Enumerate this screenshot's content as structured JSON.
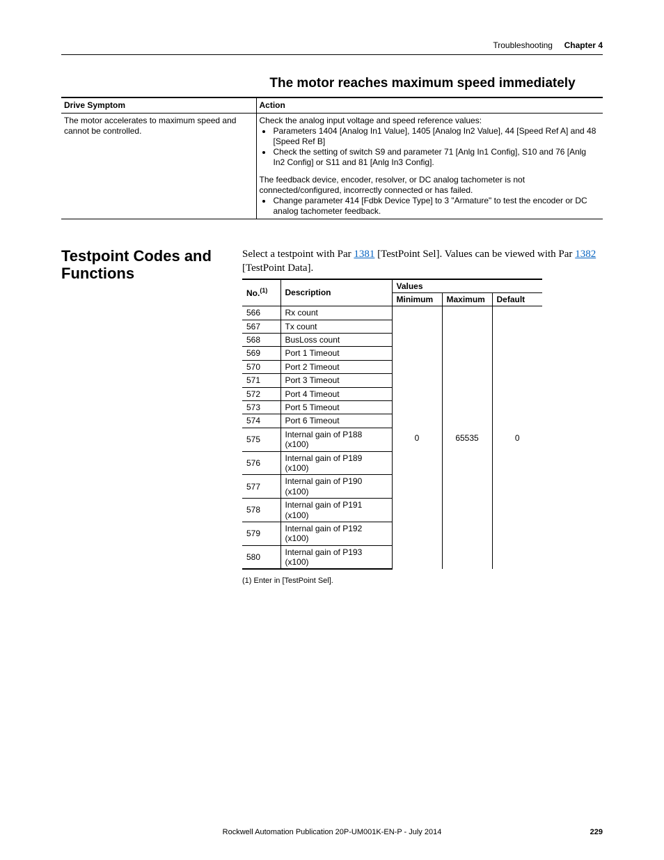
{
  "header": {
    "section": "Troubleshooting",
    "chapter": "Chapter 4"
  },
  "section1": {
    "title": "The motor reaches maximum speed immediately",
    "col_symptom": "Drive Symptom",
    "col_action": "Action",
    "symptom": "The motor accelerates to maximum speed and cannot be controlled.",
    "action_intro": "Check the analog input voltage and speed reference values:",
    "action_b1": "Parameters 1404 [Analog In1 Value], 1405 [Analog In2 Value], 44 [Speed Ref A] and 48 [Speed Ref B]",
    "action_b2": "Check the setting of switch S9 and parameter 71 [Anlg In1 Config], S10 and 76 [Anlg In2 Config] or S11 and 81 [Anlg In3 Config].",
    "action2_intro": "The feedback device, encoder, resolver, or DC analog tachometer is not connected/configured, incorrectly connected or has failed.",
    "action2_b1": "Change parameter 414 [Fdbk Device Type] to 3 \"Armature\" to test the encoder or DC analog tachometer feedback."
  },
  "section2": {
    "side_title": "Testpoint Codes and Functions",
    "intro_pre": "Select a testpoint with Par ",
    "link1": "1381",
    "intro_mid": " [TestPoint Sel]. Values can be viewed with Par ",
    "link2": "1382",
    "intro_post": " [TestPoint Data].",
    "col_no": "No.",
    "col_no_sup": "(1)",
    "col_desc": "Description",
    "col_values": "Values",
    "col_min": "Minimum",
    "col_max": "Maximum",
    "col_def": "Default",
    "val_min": "0",
    "val_max": "65535",
    "val_def": "0",
    "rows": [
      {
        "no": "566",
        "desc": "Rx count"
      },
      {
        "no": "567",
        "desc": "Tx count"
      },
      {
        "no": "568",
        "desc": "BusLoss count"
      },
      {
        "no": "569",
        "desc": "Port 1 Timeout"
      },
      {
        "no": "570",
        "desc": "Port 2 Timeout"
      },
      {
        "no": "571",
        "desc": "Port 3 Timeout"
      },
      {
        "no": "572",
        "desc": "Port 4 Timeout"
      },
      {
        "no": "573",
        "desc": "Port 5 Timeout"
      },
      {
        "no": "574",
        "desc": "Port 6 Timeout"
      },
      {
        "no": "575",
        "desc": "Internal gain of P188 (x100)"
      },
      {
        "no": "576",
        "desc": "Internal gain of P189 (x100)"
      },
      {
        "no": "577",
        "desc": "Internal gain of P190 (x100)"
      },
      {
        "no": "578",
        "desc": "Internal gain of P191 (x100)"
      },
      {
        "no": "579",
        "desc": "Internal gain of P192 (x100)"
      },
      {
        "no": "580",
        "desc": "Internal gain of P193 (x100)"
      }
    ],
    "footnote": "(1)    Enter in [TestPoint Sel]."
  },
  "footer": {
    "pub": "Rockwell Automation Publication 20P-UM001K-EN-P - July 2014",
    "page": "229"
  }
}
